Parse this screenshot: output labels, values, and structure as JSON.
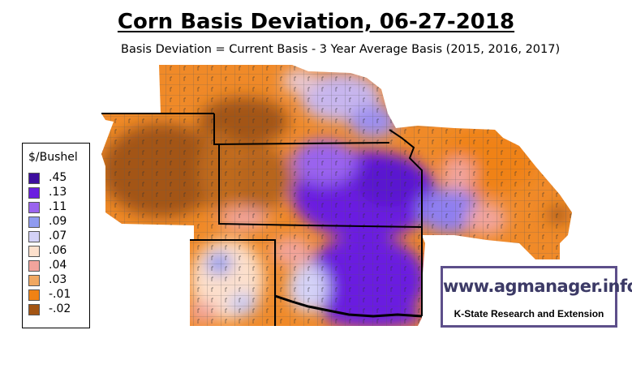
{
  "title": "Corn Basis Deviation, 06-27-2018",
  "subtitle": "Basis Deviation = Current Basis - 3 Year Average Basis (2015, 2016, 2017)",
  "legend": {
    "title": "$/Bushel",
    "items": [
      {
        "label": ".45",
        "color": "#3d0e9e"
      },
      {
        "label": ".13",
        "color": "#6a1fe0"
      },
      {
        "label": ".11",
        "color": "#9a64ee"
      },
      {
        "label": ".09",
        "color": "#8f9bf0"
      },
      {
        "label": ".07",
        "color": "#d4d2f7"
      },
      {
        "label": ".06",
        "color": "#fde0cc"
      },
      {
        "label": ".04",
        "color": "#f2a49c"
      },
      {
        "label": ".03",
        "color": "#f1a861"
      },
      {
        "label": "-.01",
        "color": "#f08214"
      },
      {
        "label": "-.02",
        "color": "#a35513"
      }
    ]
  },
  "badge": {
    "url": "www.agmanager.info",
    "org": "K-State Research and Extension",
    "border_color": "#5d4f8a"
  }
}
